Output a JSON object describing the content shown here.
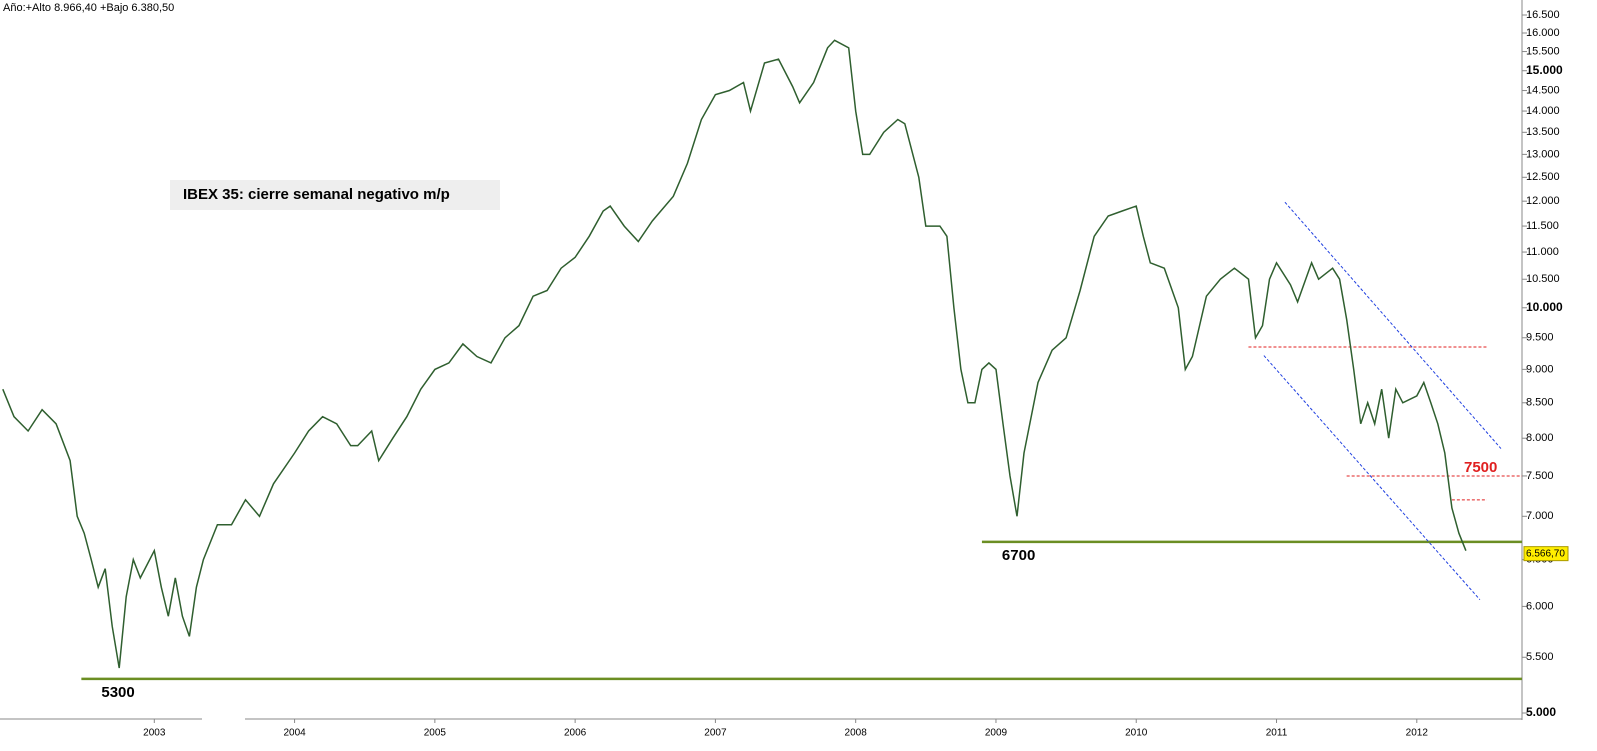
{
  "chart_data": {
    "type": "line",
    "header": "Año:+Alto 8.966,40 +Bajo 6.380,50",
    "title": "IBEX 35: cierre semanal negativo m/p",
    "log_scale": true,
    "color": "#2f5f2f",
    "x": [
      2001.92,
      2002.0,
      2002.1,
      2002.2,
      2002.3,
      2002.4,
      2002.45,
      2002.5,
      2002.55,
      2002.6,
      2002.65,
      2002.7,
      2002.75,
      2002.8,
      2002.85,
      2002.9,
      2003.0,
      2003.05,
      2003.1,
      2003.15,
      2003.2,
      2003.25,
      2003.3,
      2003.35,
      2003.45,
      2003.55,
      2003.65,
      2003.75,
      2003.85,
      2004.0,
      2004.1,
      2004.2,
      2004.3,
      2004.4,
      2004.45,
      2004.55,
      2004.6,
      2004.7,
      2004.8,
      2004.9,
      2005.0,
      2005.1,
      2005.2,
      2005.3,
      2005.4,
      2005.5,
      2005.6,
      2005.7,
      2005.8,
      2005.9,
      2006.0,
      2006.1,
      2006.2,
      2006.25,
      2006.35,
      2006.45,
      2006.55,
      2006.7,
      2006.8,
      2006.9,
      2007.0,
      2007.1,
      2007.2,
      2007.25,
      2007.35,
      2007.45,
      2007.55,
      2007.6,
      2007.7,
      2007.8,
      2007.85,
      2007.95,
      2008.0,
      2008.05,
      2008.1,
      2008.2,
      2008.3,
      2008.35,
      2008.45,
      2008.5,
      2008.6,
      2008.65,
      2008.7,
      2008.75,
      2008.8,
      2008.85,
      2008.9,
      2008.95,
      2009.0,
      2009.05,
      2009.1,
      2009.15,
      2009.2,
      2009.3,
      2009.4,
      2009.5,
      2009.6,
      2009.7,
      2009.8,
      2009.9,
      2010.0,
      2010.05,
      2010.1,
      2010.2,
      2010.3,
      2010.35,
      2010.4,
      2010.5,
      2010.6,
      2010.7,
      2010.8,
      2010.85,
      2010.9,
      2010.95,
      2011.0,
      2011.1,
      2011.15,
      2011.25,
      2011.3,
      2011.4,
      2011.45,
      2011.5,
      2011.55,
      2011.6,
      2011.65,
      2011.7,
      2011.75,
      2011.8,
      2011.85,
      2011.9,
      2012.0,
      2012.05,
      2012.1,
      2012.15,
      2012.2,
      2012.25,
      2012.3,
      2012.35
    ],
    "values": [
      8700,
      8300,
      8100,
      8400,
      8200,
      7700,
      7000,
      6800,
      6500,
      6200,
      6400,
      5800,
      5400,
      6100,
      6500,
      6300,
      6600,
      6200,
      5900,
      6300,
      5900,
      5700,
      6200,
      6500,
      6900,
      6900,
      7200,
      7000,
      7400,
      7800,
      8100,
      8300,
      8200,
      7900,
      7900,
      8100,
      7700,
      8000,
      8300,
      8700,
      9000,
      9100,
      9400,
      9200,
      9100,
      9500,
      9700,
      10200,
      10300,
      10700,
      10900,
      11300,
      11800,
      11900,
      11500,
      11200,
      11600,
      12100,
      12800,
      13800,
      14400,
      14500,
      14700,
      14000,
      15200,
      15300,
      14600,
      14200,
      14700,
      15600,
      15800,
      15600,
      14000,
      13000,
      13000,
      13500,
      13800,
      13700,
      12500,
      11500,
      11500,
      11300,
      10000,
      9000,
      8500,
      8500,
      9000,
      9100,
      9000,
      8200,
      7500,
      7000,
      7800,
      8800,
      9300,
      9500,
      10300,
      11300,
      11700,
      11800,
      11900,
      11300,
      10800,
      10700,
      10000,
      9000,
      9200,
      10200,
      10500,
      10700,
      10500,
      9500,
      9700,
      10500,
      10800,
      10400,
      10100,
      10800,
      10500,
      10700,
      10500,
      9800,
      9000,
      8200,
      8500,
      8200,
      8700,
      8000,
      8700,
      8500,
      8600,
      8800,
      8500,
      8200,
      7800,
      7100,
      6800,
      6600
    ],
    "xlim": [
      2001.9,
      2012.75
    ],
    "xticks": [
      2003,
      2004,
      2005,
      2006,
      2007,
      2008,
      2009,
      2010,
      2011,
      2012
    ],
    "ylim": [
      5000,
      16500
    ],
    "yticks": [
      {
        "value": 5000,
        "label": "5.000"
      },
      {
        "value": 5500,
        "label": "5.500"
      },
      {
        "value": 6000,
        "label": "6.000"
      },
      {
        "value": 6500,
        "label": "6.500"
      },
      {
        "value": 7000,
        "label": "7.000"
      },
      {
        "value": 7500,
        "label": "7.500"
      },
      {
        "value": 8000,
        "label": "8.000"
      },
      {
        "value": 8500,
        "label": "8.500"
      },
      {
        "value": 9000,
        "label": "9.000"
      },
      {
        "value": 9500,
        "label": "9.500"
      },
      {
        "value": 10000,
        "label": "10.000"
      },
      {
        "value": 10500,
        "label": "10.500"
      },
      {
        "value": 11000,
        "label": "11.000"
      },
      {
        "value": 11500,
        "label": "11.500"
      },
      {
        "value": 12000,
        "label": "12.000"
      },
      {
        "value": 12500,
        "label": "12.500"
      },
      {
        "value": 13000,
        "label": "13.000"
      },
      {
        "value": 13500,
        "label": "13.500"
      },
      {
        "value": 14000,
        "label": "14.000"
      },
      {
        "value": 14500,
        "label": "14.500"
      },
      {
        "value": 15000,
        "label": "15.000"
      },
      {
        "value": 15500,
        "label": "15.500"
      },
      {
        "value": 16000,
        "label": "16.000"
      },
      {
        "value": 16500,
        "label": "16.500"
      }
    ],
    "lines": [
      {
        "x": [
          2002.48,
          2012.75
        ],
        "values": [
          5300,
          5300
        ],
        "color": "#6b8e23",
        "label": "5300"
      },
      {
        "x": [
          2008.9,
          2012.75
        ],
        "values": [
          6700,
          6700
        ],
        "color": "#6b8e23",
        "label": "6700"
      },
      {
        "x": [
          2011.5,
          2012.75
        ],
        "values": [
          7500,
          7500
        ],
        "color": "#e02020",
        "dashed": true,
        "label": "7500"
      },
      {
        "x": [
          2010.8,
          2012.5
        ],
        "values": [
          9350,
          9350
        ],
        "color": "#e02020",
        "dashed": true
      },
      {
        "x": [
          2012.25,
          2012.5
        ],
        "values": [
          7200,
          7200
        ],
        "color": "#e02020",
        "dashed": true
      },
      {
        "x": [
          2011.06,
          2012.6
        ],
        "values": [
          11980,
          7860
        ],
        "color": "#2040e0",
        "dashed": true
      },
      {
        "x": [
          2010.91,
          2012.45
        ],
        "values": [
          9215,
          6069
        ],
        "color": "#2040e0",
        "dashed": true
      }
    ],
    "last": {
      "value": 6566.7,
      "label": "6.566,70"
    }
  }
}
